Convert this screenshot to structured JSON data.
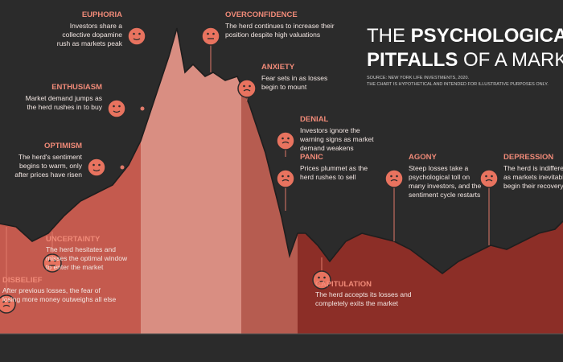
{
  "header": {
    "title_the": "THE",
    "title_bold_1": "PSYCHOLOGICAL",
    "title_bold_2": "PITFALLS",
    "title_rest": "OF A MARKET CYCLE",
    "source": "SOURCE: NEW YORK LIFE INVESTMENTS, 2020.",
    "note": "THE CHART IS HYPOTHETICAL AND INTENDED FOR ILLUSTRATIVE PURPOSES ONLY."
  },
  "stages": [
    {
      "name": "EUPHORIA",
      "lines": [
        "Investors share a",
        "collective dopamine",
        "rush as markets peak"
      ]
    },
    {
      "name": "OVERCONFIDENCE",
      "lines": [
        "The herd continues to increase their",
        "position despite high valuations"
      ]
    },
    {
      "name": "ENTHUSIASM",
      "lines": [
        "Market demand jumps as",
        "the herd rushes in to buy"
      ]
    },
    {
      "name": "ANXIETY",
      "lines": [
        "Fear sets in as losses",
        "begin to mount"
      ]
    },
    {
      "name": "OPTIMISM",
      "lines": [
        "The herd's sentiment",
        "begins to warm, only",
        "after prices have risen"
      ]
    },
    {
      "name": "DENIAL",
      "lines": [
        "Investors ignore the",
        "warning signs as market",
        "demand weakens"
      ]
    },
    {
      "name": "PANIC",
      "lines": [
        "Prices plummet as the",
        "herd rushes to sell"
      ]
    },
    {
      "name": "AGONY",
      "lines": [
        "Steep losses take a",
        "psychological toll on",
        "many investors, and the",
        "sentiment cycle restarts"
      ]
    },
    {
      "name": "DEPRESSION",
      "lines": [
        "The herd is indifferent",
        "as markets inevitably",
        "begin their recovery"
      ]
    },
    {
      "name": "UNCERTAINTY",
      "lines": [
        "The herd hesitates and",
        "misses the optimal window",
        "to enter the market"
      ]
    },
    {
      "name": "DISBELIEF",
      "lines": [
        "After previous losses, the fear of",
        "losing more money outweighs all else"
      ]
    },
    {
      "name": "CAPITULATION",
      "lines": [
        "The herd accepts its losses and",
        "completely exits the market"
      ]
    }
  ]
}
